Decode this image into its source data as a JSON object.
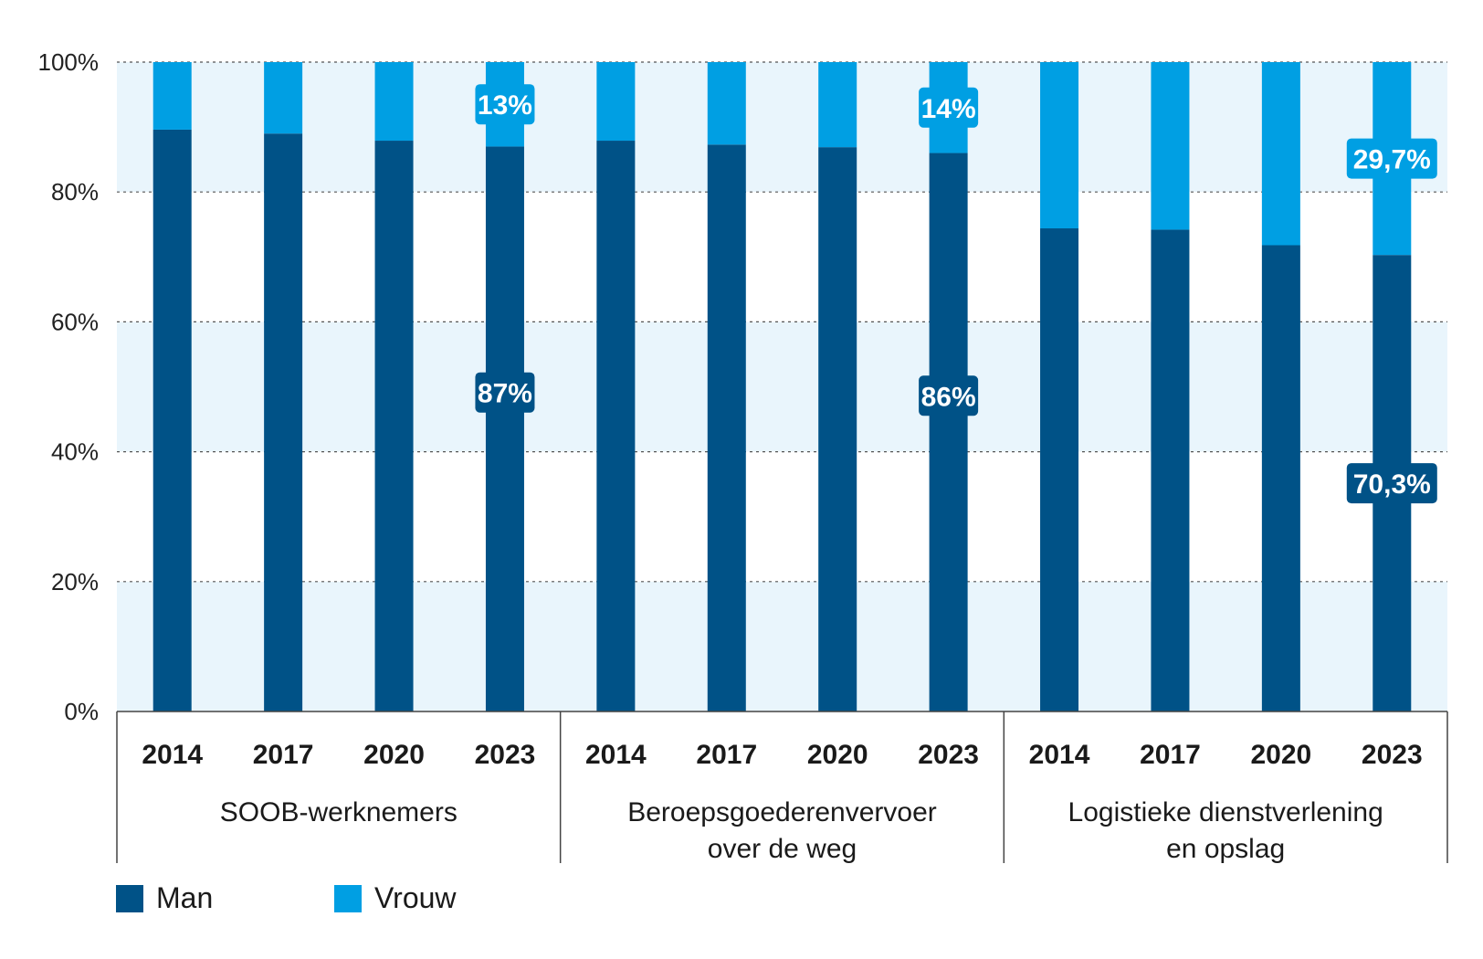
{
  "colors": {
    "man": "#005287",
    "vrouw": "#009fe3",
    "band": "#e9f5fc",
    "grid": "#555555",
    "axis": "#444444"
  },
  "legend": [
    {
      "label": "Man",
      "color": "#005287"
    },
    {
      "label": "Vrouw",
      "color": "#009fe3"
    }
  ],
  "chart_data": {
    "type": "bar",
    "stacked": true,
    "title": "",
    "xlabel": "",
    "ylabel": "",
    "ylim": [
      0,
      100
    ],
    "y_ticks": [
      "0%",
      "20%",
      "40%",
      "60%",
      "80%",
      "100%"
    ],
    "grid": true,
    "legend_position": "bottom-left",
    "groups": [
      {
        "name": "SOOB-werknemers",
        "name_lines": [
          "SOOB-werknemers"
        ],
        "categories": [
          "2014",
          "2017",
          "2020",
          "2023"
        ],
        "man": [
          89.6,
          89.0,
          87.9,
          87.0
        ],
        "vrouw": [
          10.4,
          11.0,
          12.1,
          13.0
        ],
        "labels": [
          {
            "index": 3,
            "series": "vrouw",
            "text": "13%"
          },
          {
            "index": 3,
            "series": "man",
            "text": "87%"
          }
        ]
      },
      {
        "name": "Beroepsgoederenvervoer over de weg",
        "name_lines": [
          "Beroepsgoederenvervoer",
          "over de weg"
        ],
        "categories": [
          "2014",
          "2017",
          "2020",
          "2023"
        ],
        "man": [
          87.9,
          87.3,
          86.9,
          86.0
        ],
        "vrouw": [
          12.1,
          12.7,
          13.1,
          14.0
        ],
        "labels": [
          {
            "index": 3,
            "series": "vrouw",
            "text": "14%"
          },
          {
            "index": 3,
            "series": "man",
            "text": "86%"
          }
        ]
      },
      {
        "name": "Logistieke dienstverlening en opslag",
        "name_lines": [
          "Logistieke dienstverlening",
          "en opslag"
        ],
        "categories": [
          "2014",
          "2017",
          "2020",
          "2023"
        ],
        "man": [
          74.4,
          74.2,
          71.8,
          70.3
        ],
        "vrouw": [
          25.6,
          25.8,
          28.2,
          29.7
        ],
        "labels": [
          {
            "index": 3,
            "series": "vrouw",
            "text": "29,7%"
          },
          {
            "index": 3,
            "series": "man",
            "text": "70,3%"
          }
        ]
      }
    ],
    "series": [
      {
        "name": "Man",
        "key": "man"
      },
      {
        "name": "Vrouw",
        "key": "vrouw"
      }
    ]
  }
}
